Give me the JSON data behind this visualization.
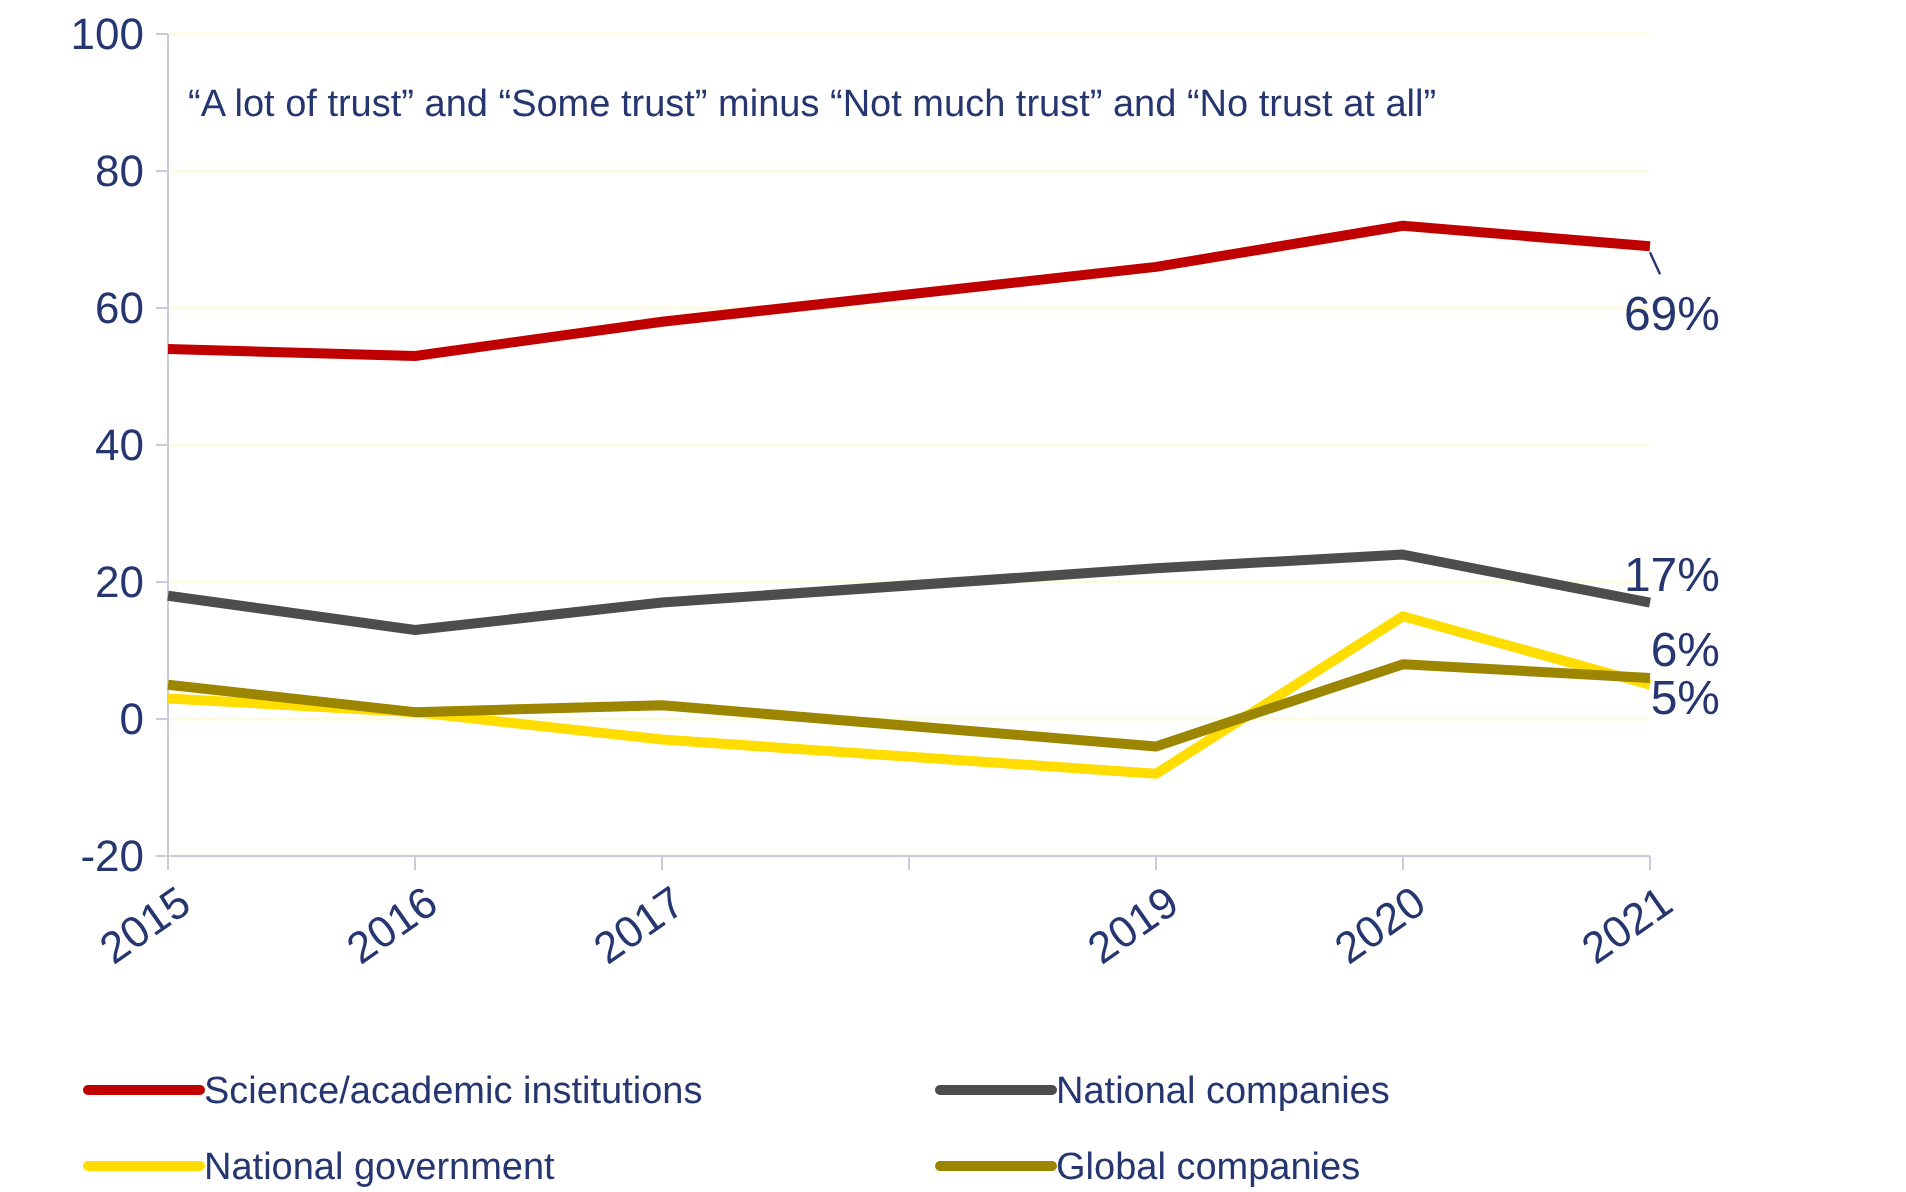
{
  "chart_data": {
    "type": "line",
    "subtitle": "“A lot of trust” and “Some trust” minus “Not much trust” and “No trust at all”",
    "x": [
      2015,
      2016,
      2017,
      2019,
      2020,
      2021
    ],
    "xlim": [
      2015,
      2021
    ],
    "xticks": [
      2015,
      2016,
      2017,
      {
        "value": 2018,
        "label": null
      },
      2019,
      2020,
      2021
    ],
    "ylim": [
      -20,
      100
    ],
    "yticks": [
      -20,
      0,
      20,
      40,
      60,
      80,
      100
    ],
    "grid": "y",
    "legend": "bottom",
    "line_style": "solid",
    "marker": "none",
    "series": [
      {
        "name": "Science/academic institutions",
        "color": "#c00000",
        "values": [
          54,
          53,
          58,
          66,
          72,
          69
        ],
        "value_labels": [
          null,
          null,
          null,
          null,
          null,
          "69%"
        ]
      },
      {
        "name": "National companies",
        "color": "#4d4d4d",
        "values": [
          18,
          13,
          17,
          22,
          24,
          17
        ],
        "value_labels": [
          null,
          null,
          null,
          null,
          null,
          "17%"
        ]
      },
      {
        "name": "National government",
        "color": "#ffdd00",
        "values": [
          3,
          1,
          -3,
          -8,
          15,
          5
        ],
        "value_labels": [
          null,
          null,
          null,
          null,
          null,
          "5%"
        ]
      },
      {
        "name": "Global companies",
        "color": "#9c8500",
        "values": [
          5,
          1,
          2,
          -4,
          8,
          6
        ],
        "value_labels": [
          null,
          null,
          null,
          null,
          null,
          "6%"
        ]
      }
    ]
  }
}
